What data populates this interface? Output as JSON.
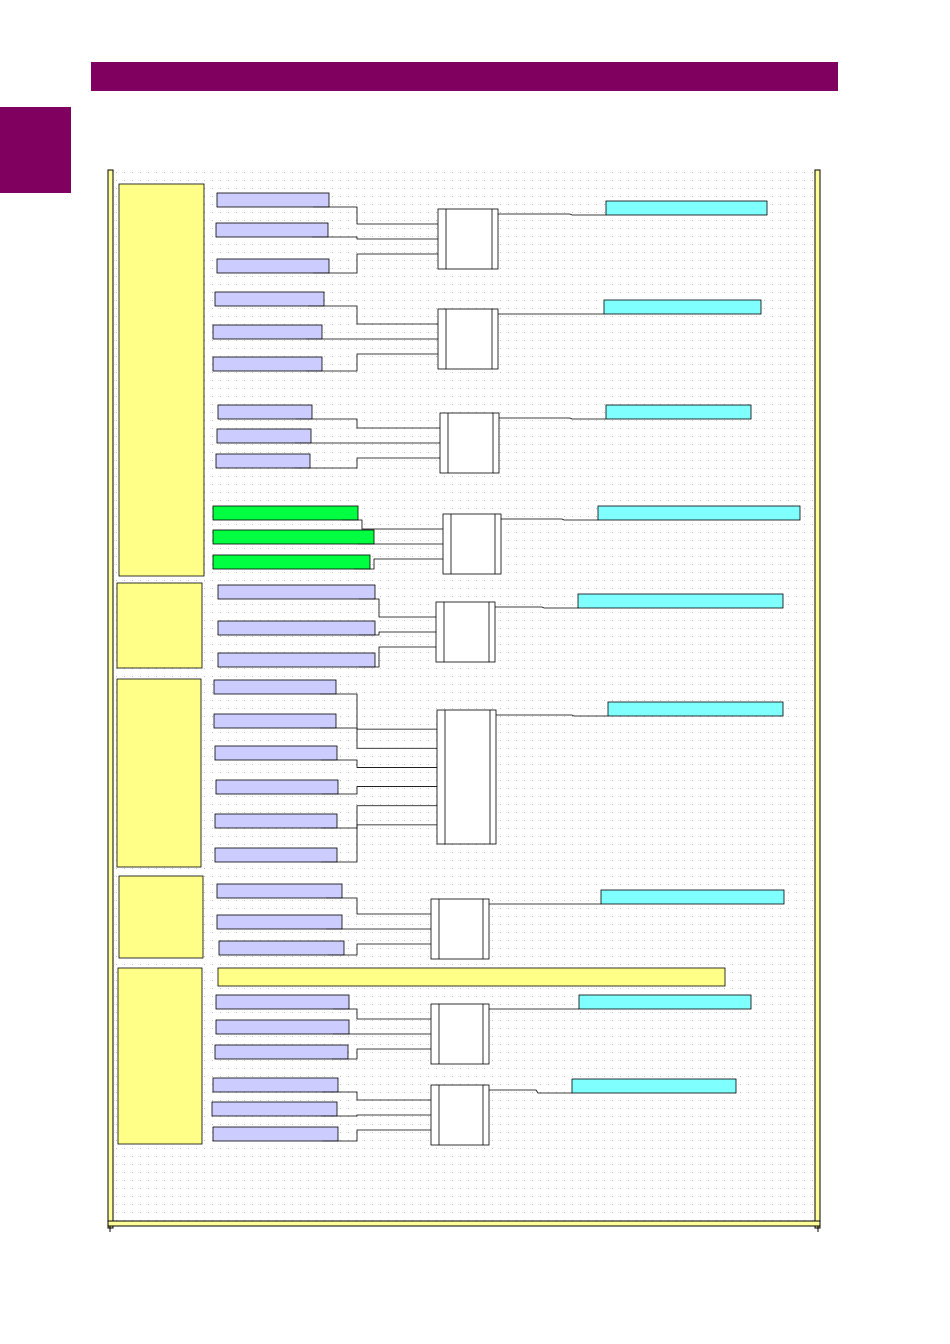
{
  "header": {
    "bar_color": "#800060",
    "title": ""
  },
  "side_tab": {
    "color": "#800060",
    "label": ""
  },
  "diagram": {
    "caption": "",
    "colors": {
      "group": "#ffff88",
      "input": "#ccccff",
      "input_alt": "#00ff40",
      "output": "#80ffff",
      "wide_bar": "#ffff88",
      "frame": "#e6e66e",
      "wire": "#000000"
    },
    "groups": [
      {
        "name": "group-1",
        "label": ""
      },
      {
        "name": "group-2",
        "label": ""
      },
      {
        "name": "group-3",
        "label": ""
      },
      {
        "name": "group-4",
        "label": ""
      },
      {
        "name": "group-5",
        "label": ""
      }
    ],
    "logic_blocks": [
      {
        "id": "gate-1",
        "inputs": 3,
        "label": "",
        "output_label": ""
      },
      {
        "id": "gate-2",
        "inputs": 3,
        "label": "",
        "output_label": ""
      },
      {
        "id": "gate-3",
        "inputs": 3,
        "label": "",
        "output_label": ""
      },
      {
        "id": "gate-4",
        "inputs": 3,
        "label": "",
        "output_label": "",
        "input_style": "alt"
      },
      {
        "id": "gate-5",
        "inputs": 3,
        "label": "",
        "output_label": ""
      },
      {
        "id": "gate-6",
        "inputs": 6,
        "label": "",
        "output_label": ""
      },
      {
        "id": "gate-7",
        "inputs": 3,
        "label": "",
        "output_label": ""
      },
      {
        "id": "gate-8",
        "inputs": 3,
        "label": "",
        "output_label": ""
      },
      {
        "id": "gate-9",
        "inputs": 3,
        "label": "",
        "output_label": ""
      }
    ],
    "wide_setting_label": ""
  }
}
